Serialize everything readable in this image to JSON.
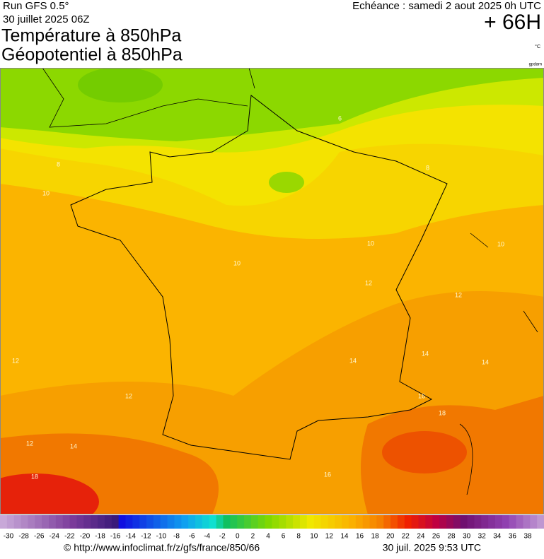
{
  "header": {
    "run": "Run GFS 0.5°",
    "run_date": "30 juillet 2025 06Z",
    "echeance": "Echéance : samedi 2 aout 2025 0h UTC",
    "lead": "+ 66H",
    "title1": "Température à 850hPa",
    "title2": "Géopotentiel à 850hPa",
    "unit": "°C",
    "credit": "gpdam"
  },
  "contours": [
    6,
    8,
    8,
    10,
    10,
    10,
    10,
    12,
    12,
    12,
    12,
    14,
    14,
    14,
    16,
    18,
    18,
    12,
    14,
    16
  ],
  "colorbar": {
    "labels": [
      -30,
      -28,
      -26,
      -24,
      -22,
      -20,
      -18,
      -16,
      -14,
      -12,
      -10,
      -8,
      -6,
      -4,
      -2,
      0,
      2,
      4,
      6,
      8,
      10,
      12,
      14,
      16,
      18,
      20,
      22,
      24,
      26,
      28,
      30,
      32,
      34,
      36,
      38
    ]
  },
  "footer": {
    "url": "© http://www.infoclimat.fr/z/gfs/france/850/66",
    "date": "30 juil. 2025  9:53 UTC"
  }
}
